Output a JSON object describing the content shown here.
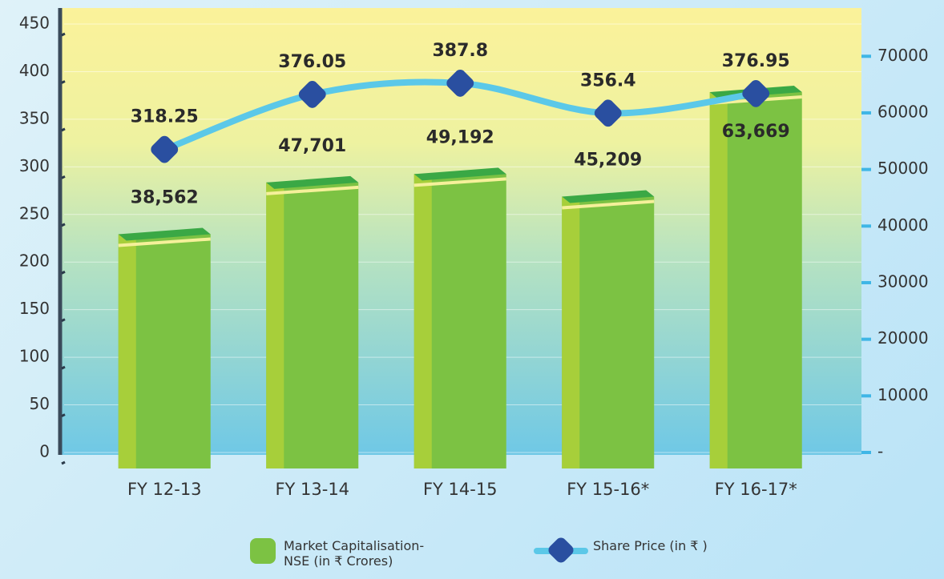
{
  "chart_data": {
    "type": "bar-line",
    "categories": [
      "FY 12-13",
      "FY 13-14",
      "FY 14-15",
      "FY 15-16*",
      "FY 16-17*"
    ],
    "series": [
      {
        "name": "Market Capitalisation-NSE (in ₹ Crores)",
        "type": "bar",
        "axis": "y2",
        "color": "#7cc243",
        "values": [
          38562,
          47701,
          49192,
          45209,
          63669
        ],
        "value_labels": [
          "38,562",
          "47,701",
          "49,192",
          "45,209",
          "63,669"
        ]
      },
      {
        "name": "Share Price (in ₹ )",
        "type": "line",
        "color": "#5bc8e8",
        "marker_color": "#2a4fa0",
        "values": [
          318.25,
          376.05,
          387.8,
          356.4,
          376.95
        ]
      }
    ],
    "ylim": [
      0,
      450
    ],
    "yticks": [
      0,
      50,
      100,
      150,
      200,
      250,
      300,
      350,
      400,
      450
    ],
    "y2lim": [
      0,
      75700
    ],
    "y2ticks": [
      {
        "value": 0,
        "label": "-"
      },
      10000,
      20000,
      30000,
      40000,
      50000,
      60000,
      70000
    ]
  }
}
